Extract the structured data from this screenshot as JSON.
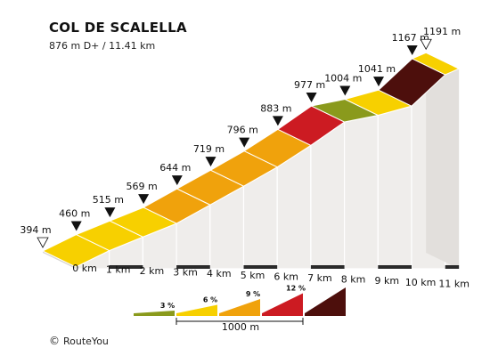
{
  "title": "COL DE SCALELLA",
  "subtitle": "876 m D+ / 11.41 km",
  "credit": "RouteYou",
  "credit_symbol": "©",
  "chart_data": {
    "type": "area",
    "x_unit": "km",
    "x": [
      0,
      1,
      2,
      3,
      4,
      5,
      6,
      7,
      8,
      9,
      10,
      11,
      11.41
    ],
    "elevation_m": [
      394,
      460,
      515,
      569,
      644,
      719,
      796,
      883,
      977,
      1004,
      1041,
      1167,
      1191
    ],
    "elevation_labels": [
      "394 m",
      "460 m",
      "515 m",
      "569 m",
      "644 m",
      "719 m",
      "796 m",
      "883 m",
      "977 m",
      "1004 m",
      "1041 m",
      "1167 m",
      "1191 m"
    ],
    "x_tick_labels": [
      "0 km",
      "1 km",
      "2 km",
      "3 km",
      "4 km",
      "5 km",
      "6 km",
      "7 km",
      "8 km",
      "9 km",
      "10 km",
      "11 km"
    ],
    "segment_gradient_class": [
      6,
      6,
      6,
      9,
      9,
      9,
      9,
      12,
      3,
      6,
      15,
      6
    ],
    "legend": {
      "gradients": [
        {
          "label": "3 %",
          "color": "#8a9a1c"
        },
        {
          "label": "6 %",
          "color": "#f7d000"
        },
        {
          "label": "9 %",
          "color": "#f0a20c"
        },
        {
          "label": "12 %",
          "color": "#cc1b22"
        },
        {
          "label": "",
          "color": "#4d0f0c"
        }
      ],
      "scale_label": "1000 m"
    },
    "colors": {
      "face": "#efedeb",
      "base": "#2a2a2a",
      "seg_3": "#8a9a1c",
      "seg_6": "#f7d000",
      "seg_9": "#f0a20c",
      "seg_12": "#cc1b22",
      "seg_15": "#4d0f0c"
    },
    "legend_placement": "bottom",
    "grid": false
  }
}
